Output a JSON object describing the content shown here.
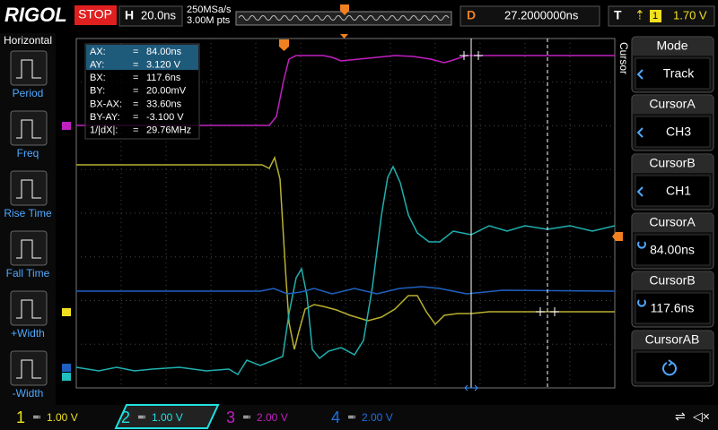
{
  "header": {
    "brand": "RIGOL",
    "status": "STOP",
    "timebase_label": "H",
    "timebase": "20.0ns",
    "sample_rate": "250MSa/s",
    "memory_depth": "3.00M pts",
    "delay_label": "D",
    "delay": "27.2000000ns",
    "trigger_label": "T",
    "trigger_source": "1",
    "trigger_level": "1.70 V"
  },
  "left_menu": {
    "title": "Horizontal",
    "items": [
      "Period",
      "Freq",
      "Rise Time",
      "Fall Time",
      "+Width",
      "-Width"
    ]
  },
  "cursor_readout": {
    "rows": [
      [
        "AX:",
        "=",
        "84.00ns"
      ],
      [
        "AY:",
        "=",
        "3.120 V"
      ],
      [
        "BX:",
        "=",
        "117.6ns"
      ],
      [
        "BY:",
        "=",
        "20.00mV"
      ],
      [
        "BX-AX:",
        "=",
        "33.60ns"
      ],
      [
        "BY-AY:",
        "=",
        "-3.100 V"
      ],
      [
        "1/|dX|:",
        "=",
        "29.76MHz"
      ]
    ]
  },
  "right_menu": {
    "side_label": "Cursor",
    "items": [
      {
        "title": "Mode",
        "value": "Track"
      },
      {
        "title": "CursorA",
        "value": "CH3"
      },
      {
        "title": "CursorB",
        "value": "CH1"
      },
      {
        "title": "CursorA",
        "value": "84.00ns"
      },
      {
        "title": "CursorB",
        "value": "117.6ns"
      },
      {
        "title": "CursorAB"
      }
    ]
  },
  "channels": [
    {
      "number": "1",
      "scale": "1.00 V"
    },
    {
      "number": "2",
      "scale": "1.00 V"
    },
    {
      "number": "3",
      "scale": "2.00 V"
    },
    {
      "number": "4",
      "scale": "2.00 V"
    }
  ]
}
